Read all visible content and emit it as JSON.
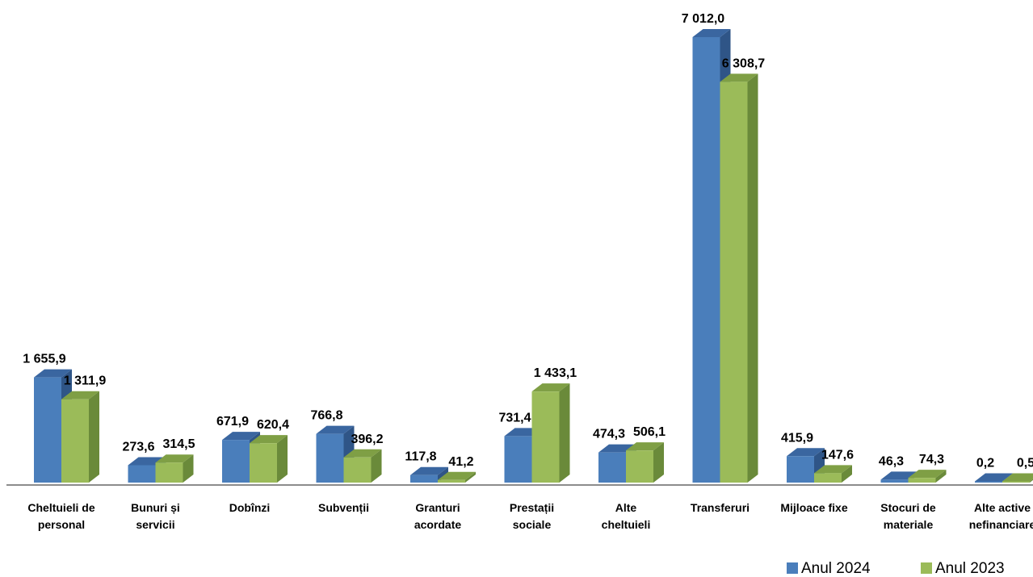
{
  "chart_data": {
    "type": "bar",
    "categories": [
      [
        "Cheltuieli de",
        "personal"
      ],
      [
        "Bunuri și",
        "servicii"
      ],
      [
        "Dobînzi"
      ],
      [
        "Subvenții"
      ],
      [
        "Granturi",
        "acordate"
      ],
      [
        "Prestații",
        "sociale"
      ],
      [
        "Alte",
        "cheltuieli"
      ],
      [
        "Transferuri"
      ],
      [
        "Mijloace fixe"
      ],
      [
        "Stocuri de",
        "materiale"
      ],
      [
        "Alte active",
        "nefinanciare"
      ]
    ],
    "series": [
      {
        "name": "Anul 2024",
        "values": [
          1655.9,
          273.6,
          671.9,
          766.8,
          117.8,
          731.4,
          474.3,
          7012.0,
          415.9,
          46.3,
          0.2
        ],
        "labels": [
          "1 655,9",
          "273,6",
          "671,9",
          "766,8",
          "117,8",
          "731,4",
          "474,3",
          "7 012,0",
          "415,9",
          "46,3",
          "0,2"
        ],
        "color": "#4a7ebb",
        "side_color": "#2f5587",
        "top_color": "#3a66a0"
      },
      {
        "name": "Anul 2023",
        "values": [
          1311.9,
          314.5,
          620.4,
          396.2,
          41.2,
          1433.1,
          506.1,
          6308.7,
          147.6,
          74.3,
          0.5
        ],
        "labels": [
          "1 311,9",
          "314,5",
          "620,4",
          "396,2",
          "41,2",
          "1 433,1",
          "506,1",
          "6 308,7",
          "147,6",
          "74,3",
          "0,5"
        ],
        "color": "#9bbb59",
        "side_color": "#6a8a3a",
        "top_color": "#7f9f45"
      }
    ],
    "title": "",
    "xlabel": "",
    "ylabel": "",
    "ylim": [
      0,
      7012.0
    ],
    "grid": false,
    "legend": "bottom-right"
  }
}
